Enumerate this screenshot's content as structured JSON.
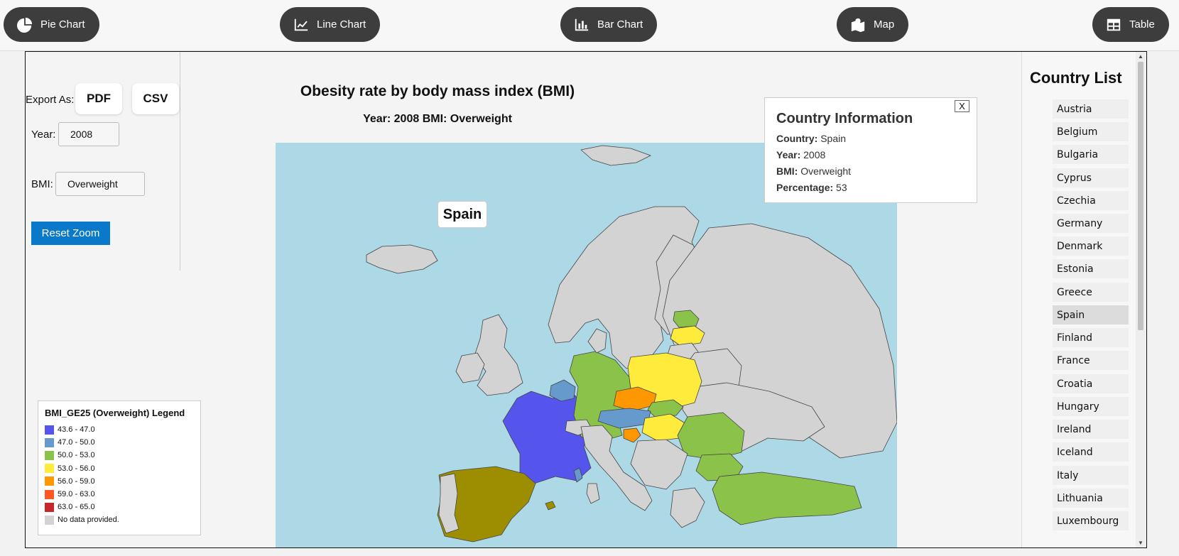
{
  "nav": {
    "buttons": [
      {
        "label": "Pie Chart",
        "icon": "pie-chart-icon"
      },
      {
        "label": "Line Chart",
        "icon": "line-chart-icon"
      },
      {
        "label": "Bar Chart",
        "icon": "bar-chart-icon"
      },
      {
        "label": "Map",
        "icon": "map-icon"
      },
      {
        "label": "Table",
        "icon": "table-icon"
      }
    ]
  },
  "controls": {
    "export_label": "Export As:",
    "pdf_label": "PDF",
    "csv_label": "CSV",
    "year_label": "Year:",
    "year_value": "2008",
    "bmi_label": "BMI:",
    "bmi_value": "Overweight",
    "reset_label": "Reset Zoom"
  },
  "chart": {
    "title": "Obesity rate by body mass index (BMI)",
    "subtitle": "Year: 2008 BMI: Overweight",
    "hover_label": "Spain"
  },
  "legend": {
    "title": "BMI_GE25 (Overweight) Legend",
    "items": [
      {
        "label": "43.6 - 47.0",
        "color": "#5555ee"
      },
      {
        "label": "47.0 - 50.0",
        "color": "#6699cc"
      },
      {
        "label": "50.0 - 53.0",
        "color": "#8bc34a"
      },
      {
        "label": "53.0 - 56.0",
        "color": "#ffeb3b"
      },
      {
        "label": "56.0 - 59.0",
        "color": "#ff9800"
      },
      {
        "label": "59.0 - 63.0",
        "color": "#ff5722"
      },
      {
        "label": "63.0 - 65.0",
        "color": "#c62828"
      },
      {
        "label": "No data provided.",
        "color": "#d3d3d3"
      }
    ]
  },
  "info": {
    "title": "Country Information",
    "close_label": "X",
    "country_key": "Country:",
    "country_val": "Spain",
    "year_key": "Year:",
    "year_val": "2008",
    "bmi_key": "BMI:",
    "bmi_val": "Overweight",
    "pct_key": "Percentage:",
    "pct_val": "53"
  },
  "country_list": {
    "title": "Country List",
    "active": "Spain",
    "items": [
      "Austria",
      "Belgium",
      "Bulgaria",
      "Cyprus",
      "Czechia",
      "Germany",
      "Denmark",
      "Estonia",
      "Greece",
      "Spain",
      "Finland",
      "France",
      "Croatia",
      "Hungary",
      "Ireland",
      "Iceland",
      "Italy",
      "Lithuania",
      "Luxembourg"
    ]
  },
  "colors": {
    "nav_bg": "#3d3d3d",
    "reset_bg": "#0a79c9",
    "sea": "#add8e6",
    "spain": "#9c8e00"
  }
}
